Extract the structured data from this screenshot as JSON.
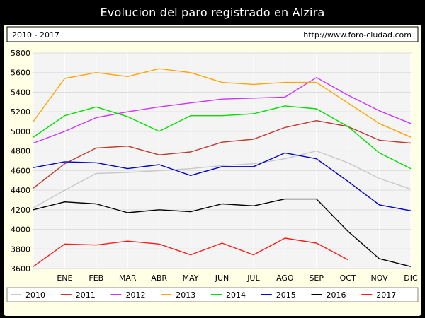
{
  "title": "Evolucion del paro registrado en Alzira",
  "header": {
    "period": "2010 - 2017",
    "url": "http://www.foro-ciudad.com"
  },
  "chart_data": {
    "type": "line",
    "categories": [
      "",
      "ENE",
      "FEB",
      "MAR",
      "ABR",
      "MAY",
      "JUN",
      "JUL",
      "AGO",
      "SEP",
      "OCT",
      "NOV",
      "DIC"
    ],
    "ylim": [
      3600,
      5800
    ],
    "yticks": [
      3600,
      3800,
      4000,
      4200,
      4400,
      4600,
      4800,
      5000,
      5200,
      5400,
      5600,
      5800
    ],
    "grid": true,
    "legend_position": "bottom",
    "series": [
      {
        "name": "2010",
        "color": "#c8c8c8",
        "values": [
          4220,
          4400,
          4570,
          4580,
          4600,
          4620,
          4650,
          4670,
          4720,
          4800,
          4680,
          4520,
          4410
        ]
      },
      {
        "name": "2011",
        "color": "#c0392b",
        "values": [
          4420,
          4670,
          4830,
          4850,
          4760,
          4790,
          4890,
          4920,
          5040,
          5110,
          5050,
          4910,
          4880
        ]
      },
      {
        "name": "2012",
        "color": "#cc33ff",
        "values": [
          4880,
          5000,
          5140,
          5200,
          5250,
          5290,
          5330,
          5340,
          5350,
          5550,
          5370,
          5210,
          5080
        ]
      },
      {
        "name": "2013",
        "color": "#ffa500",
        "values": [
          5100,
          5540,
          5600,
          5560,
          5640,
          5600,
          5500,
          5480,
          5500,
          5500,
          5290,
          5080,
          4940
        ]
      },
      {
        "name": "2014",
        "color": "#00e000",
        "values": [
          4940,
          5160,
          5250,
          5150,
          5000,
          5160,
          5160,
          5180,
          5260,
          5230,
          5050,
          4780,
          4620
        ]
      },
      {
        "name": "2015",
        "color": "#0000cc",
        "values": [
          4630,
          4690,
          4680,
          4620,
          4660,
          4550,
          4640,
          4640,
          4780,
          4720,
          4490,
          4250,
          4190
        ]
      },
      {
        "name": "2016",
        "color": "#000000",
        "values": [
          4200,
          4280,
          4260,
          4170,
          4200,
          4180,
          4260,
          4240,
          4310,
          4310,
          3980,
          3700,
          3620
        ]
      },
      {
        "name": "2017",
        "color": "#ff1a1a",
        "values": [
          3620,
          3850,
          3840,
          3880,
          3850,
          3740,
          3860,
          3740,
          3910,
          3860,
          3690,
          null,
          null
        ]
      }
    ]
  }
}
